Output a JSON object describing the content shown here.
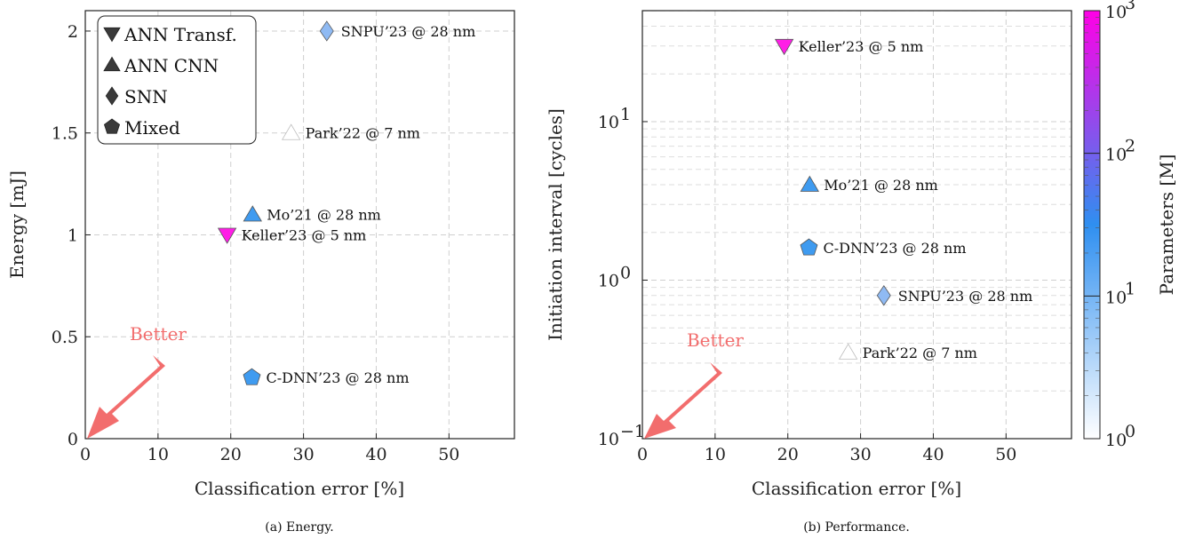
{
  "chart_data": [
    {
      "type": "scatter",
      "caption": "(a) Energy.",
      "xlabel": "Classification error [%]",
      "ylabel": "Energy [mJ]",
      "xlim": [
        0,
        59
      ],
      "ylim": [
        0,
        2.1
      ],
      "xticks": [
        0,
        10,
        20,
        30,
        40,
        50
      ],
      "yticks": [
        0,
        0.5,
        1,
        1.5,
        2
      ],
      "ytick_labels": [
        "0",
        "0.5",
        "1",
        "1.5",
        "2"
      ],
      "grid": true,
      "legend": {
        "position": "top-left",
        "entries": [
          {
            "label": "ANN Transf.",
            "marker": "triangle-down"
          },
          {
            "label": "ANN CNN",
            "marker": "triangle-up"
          },
          {
            "label": "SNN",
            "marker": "diamond"
          },
          {
            "label": "Mixed",
            "marker": "pentagon"
          }
        ]
      },
      "annotation": {
        "text": "Better"
      },
      "points": [
        {
          "label": "SNPU’23 @ 28 nm",
          "x": 33.2,
          "y": 2.0,
          "marker": "diamond",
          "color": "#8fbaf3"
        },
        {
          "label": "Park’22 @ 7 nm",
          "x": 28.3,
          "y": 1.5,
          "marker": "triangle-up",
          "color": "#ffffff"
        },
        {
          "label": "Mo’21 @ 28 nm",
          "x": 23.0,
          "y": 1.1,
          "marker": "triangle-up",
          "color": "#3f9bf0"
        },
        {
          "label": "Keller’23 @ 5 nm",
          "x": 19.5,
          "y": 1.0,
          "marker": "triangle-down",
          "color": "#ff1ee6"
        },
        {
          "label": "C-DNN’23 @ 28 nm",
          "x": 22.9,
          "y": 0.3,
          "marker": "pentagon",
          "color": "#3f9bf0"
        }
      ]
    },
    {
      "type": "scatter",
      "caption": "(b) Performance.",
      "xlabel": "Classification error [%]",
      "ylabel": "Initiation interval [cycles]",
      "xlim": [
        0,
        59
      ],
      "ylim_log10": [
        -1,
        1.7
      ],
      "y_scale": "log",
      "xticks": [
        0,
        10,
        20,
        30,
        40,
        50
      ],
      "ytick_exponents": [
        -1,
        0,
        1
      ],
      "grid": true,
      "annotation": {
        "text": "Better"
      },
      "colorbar": {
        "label": "Parameters [M]",
        "scale": "log",
        "range_exponents": [
          0,
          3
        ],
        "tick_exponents": [
          0,
          1,
          2,
          3
        ],
        "colors": [
          "#ffffff",
          "#2f8ff0",
          "#ff00e6"
        ]
      },
      "points": [
        {
          "label": "Keller’23 @ 5 nm",
          "x": 19.5,
          "y": 30,
          "marker": "triangle-down",
          "color": "#ff1ee6"
        },
        {
          "label": "Mo’21 @ 28 nm",
          "x": 23.0,
          "y": 4.0,
          "marker": "triangle-up",
          "color": "#3f9bf0"
        },
        {
          "label": "C-DNN’23 @ 28 nm",
          "x": 22.9,
          "y": 1.6,
          "marker": "pentagon",
          "color": "#3f9bf0"
        },
        {
          "label": "SNPU’23 @ 28 nm",
          "x": 33.2,
          "y": 0.8,
          "marker": "diamond",
          "color": "#8fbaf3"
        },
        {
          "label": "Park’22 @ 7 nm",
          "x": 28.3,
          "y": 0.35,
          "marker": "triangle-up",
          "color": "#ffffff"
        }
      ]
    }
  ]
}
